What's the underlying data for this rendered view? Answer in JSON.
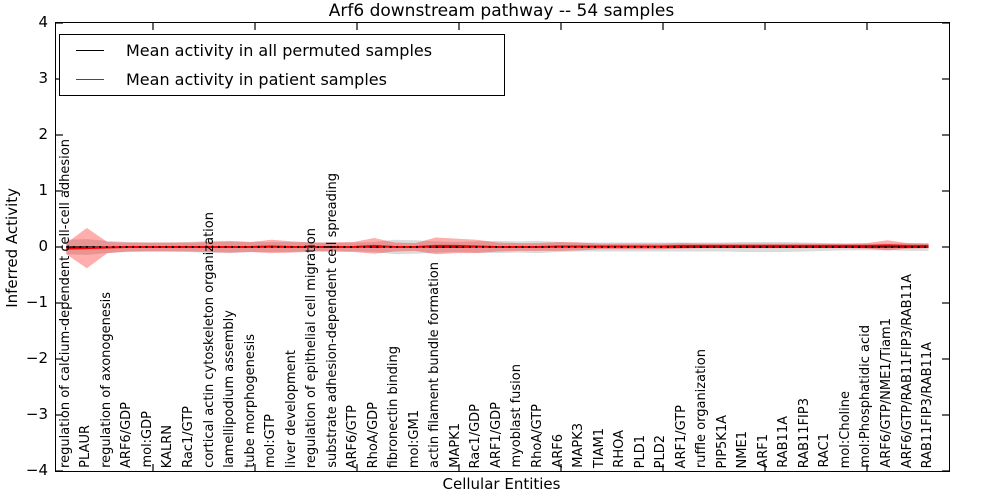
{
  "title": "Arf6 downstream pathway -- 54 samples",
  "axes": {
    "ylabel": "Inferred Activity",
    "xlabel": "Cellular Entities",
    "ytick_labels": [
      "4",
      "3",
      "2",
      "1",
      "0",
      "−1",
      "−2",
      "−3",
      "−4"
    ],
    "ylim": [
      -4,
      4
    ]
  },
  "legend": {
    "items": [
      {
        "label": "Mean activity in all permuted samples",
        "color": "#000000"
      },
      {
        "label": "Mean activity in patient samples",
        "color": "#ff0000"
      }
    ]
  },
  "colors": {
    "permuted_line": "#000000",
    "patient_line": "#ff0000",
    "patient_band": "rgba(255,0,0,0.32)",
    "permuted_band": "rgba(0,0,0,0.14)",
    "axis": "#000000"
  },
  "chart_data": {
    "type": "line",
    "title": "Arf6 downstream pathway -- 54 samples",
    "xlabel": "Cellular Entities",
    "ylabel": "Inferred Activity",
    "ylim": [
      -4,
      4
    ],
    "grid": false,
    "legend_position": "upper left",
    "categories": [
      "regulation of calcium-dependent cell-cell adhesion",
      "PLAUR",
      "regulation of axonogenesis",
      "ARF6/GDP",
      "mol:GDP",
      "KALRN",
      "Rac1/GTP",
      "cortical actin cytoskeleton organization",
      "lamellipodium assembly",
      "tube morphogenesis",
      "mol:GTP",
      "liver development",
      "regulation of epithelial cell migration",
      "substrate adhesion-dependent cell spreading",
      "ARF6/GTP",
      "RhoA/GDP",
      "fibronectin binding",
      "mol:GM1",
      "actin filament bundle formation",
      "MAPK1",
      "Rac1/GDP",
      "ARF1/GDP",
      "myoblast fusion",
      "RhoA/GTP",
      "ARF6",
      "MAPK3",
      "TIAM1",
      "RHOA",
      "PLD1",
      "PLD2",
      "ARF1/GTP",
      "ruffle organization",
      "PIP5K1A",
      "NME1",
      "ARF1",
      "RAB11A",
      "RAB11FIP3",
      "RAC1",
      "mol:Choline",
      "mol:Phosphatidic acid",
      "ARF6/GTP/NME1/Tiam1",
      "ARF6/GTP/RAB11FIP3/RAB11A",
      "RAB11FIP3/RAB11A"
    ],
    "series": [
      {
        "name": "Mean activity in all permuted samples",
        "color": "#000000",
        "line_style": "dotted-over-solid",
        "values": [
          0,
          0,
          0,
          0,
          0,
          0,
          0,
          0,
          0,
          0,
          0,
          0,
          0,
          0,
          0,
          0,
          0,
          0,
          0,
          0,
          0,
          0,
          0,
          0,
          0,
          0,
          0,
          0,
          0,
          0,
          0,
          0,
          0,
          0,
          0,
          0,
          0,
          0,
          0,
          0,
          0,
          0,
          0
        ],
        "band_halfwidth": [
          0.13,
          0.14,
          0.11,
          0.09,
          0.08,
          0.08,
          0.09,
          0.11,
          0.11,
          0.09,
          0.09,
          0.09,
          0.08,
          0.08,
          0.08,
          0.09,
          0.13,
          0.12,
          0.1,
          0.09,
          0.1,
          0.11,
          0.1,
          0.11,
          0.09,
          0.08,
          0.08,
          0.08,
          0.08,
          0.08,
          0.08,
          0.08,
          0.08,
          0.09,
          0.09,
          0.09,
          0.08,
          0.07,
          0.06,
          0.06,
          0.06,
          0.07,
          0.07
        ],
        "band_color": "rgba(0,0,0,0.14)"
      },
      {
        "name": "Mean activity in patient samples",
        "color": "#ff0000",
        "line_style": "solid",
        "values": [
          -0.03,
          -0.02,
          -0.01,
          0,
          0,
          0,
          0,
          0,
          0,
          0,
          0.01,
          0,
          0,
          0,
          0,
          0.02,
          0,
          0,
          0.02,
          0.02,
          0.01,
          0,
          0,
          0,
          0.01,
          0.01,
          0.01,
          0.01,
          0.01,
          0.01,
          0.02,
          0.02,
          0.02,
          0.02,
          0.02,
          0.02,
          0.02,
          0.02,
          0.02,
          0.02,
          0.03,
          0.02,
          0.02
        ],
        "band_halfwidth": [
          0.1,
          0.36,
          0.1,
          0.08,
          0.08,
          0.08,
          0.08,
          0.09,
          0.1,
          0.09,
          0.12,
          0.1,
          0.08,
          0.08,
          0.09,
          0.14,
          0.08,
          0.07,
          0.15,
          0.13,
          0.12,
          0.08,
          0.07,
          0.07,
          0.08,
          0.07,
          0.05,
          0.05,
          0.05,
          0.05,
          0.05,
          0.04,
          0.04,
          0.04,
          0.04,
          0.04,
          0.04,
          0.04,
          0.04,
          0.05,
          0.09,
          0.05,
          0.04
        ],
        "band_color": "rgba(255,0,0,0.32)"
      }
    ]
  }
}
